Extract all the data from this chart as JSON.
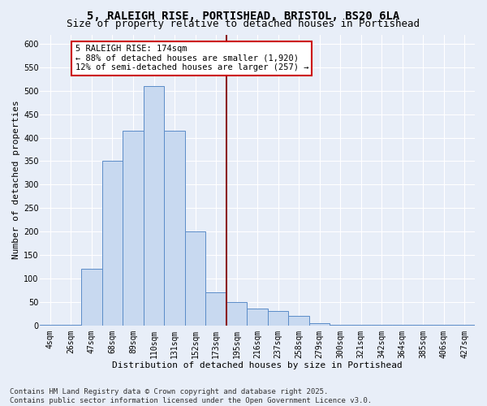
{
  "title1": "5, RALEIGH RISE, PORTISHEAD, BRISTOL, BS20 6LA",
  "title2": "Size of property relative to detached houses in Portishead",
  "xlabel": "Distribution of detached houses by size in Portishead",
  "ylabel": "Number of detached properties",
  "footnote": "Contains HM Land Registry data © Crown copyright and database right 2025.\nContains public sector information licensed under the Open Government Licence v3.0.",
  "bin_labels": [
    "4sqm",
    "26sqm",
    "47sqm",
    "68sqm",
    "89sqm",
    "110sqm",
    "131sqm",
    "152sqm",
    "173sqm",
    "195sqm",
    "216sqm",
    "237sqm",
    "258sqm",
    "279sqm",
    "300sqm",
    "321sqm",
    "342sqm",
    "364sqm",
    "385sqm",
    "406sqm",
    "427sqm"
  ],
  "bar_heights": [
    2,
    2,
    120,
    350,
    415,
    510,
    415,
    200,
    70,
    50,
    35,
    30,
    20,
    5,
    2,
    2,
    2,
    1,
    2,
    1,
    1
  ],
  "bar_color": "#c8d9f0",
  "bar_edge_color": "#5b8cc8",
  "vline_color": "#8b1a1a",
  "annotation_text": "5 RALEIGH RISE: 174sqm\n← 88% of detached houses are smaller (1,920)\n12% of semi-detached houses are larger (257) →",
  "annotation_box_facecolor": "#ffffff",
  "annotation_border_color": "#cc0000",
  "ylim": [
    0,
    620
  ],
  "yticks": [
    0,
    50,
    100,
    150,
    200,
    250,
    300,
    350,
    400,
    450,
    500,
    550,
    600
  ],
  "bg_color": "#e8eef8",
  "grid_color": "#ffffff",
  "title1_fontsize": 10,
  "title2_fontsize": 9,
  "xlabel_fontsize": 8,
  "ylabel_fontsize": 8,
  "tick_fontsize": 7,
  "footnote_fontsize": 6.5,
  "annot_fontsize": 7.5
}
